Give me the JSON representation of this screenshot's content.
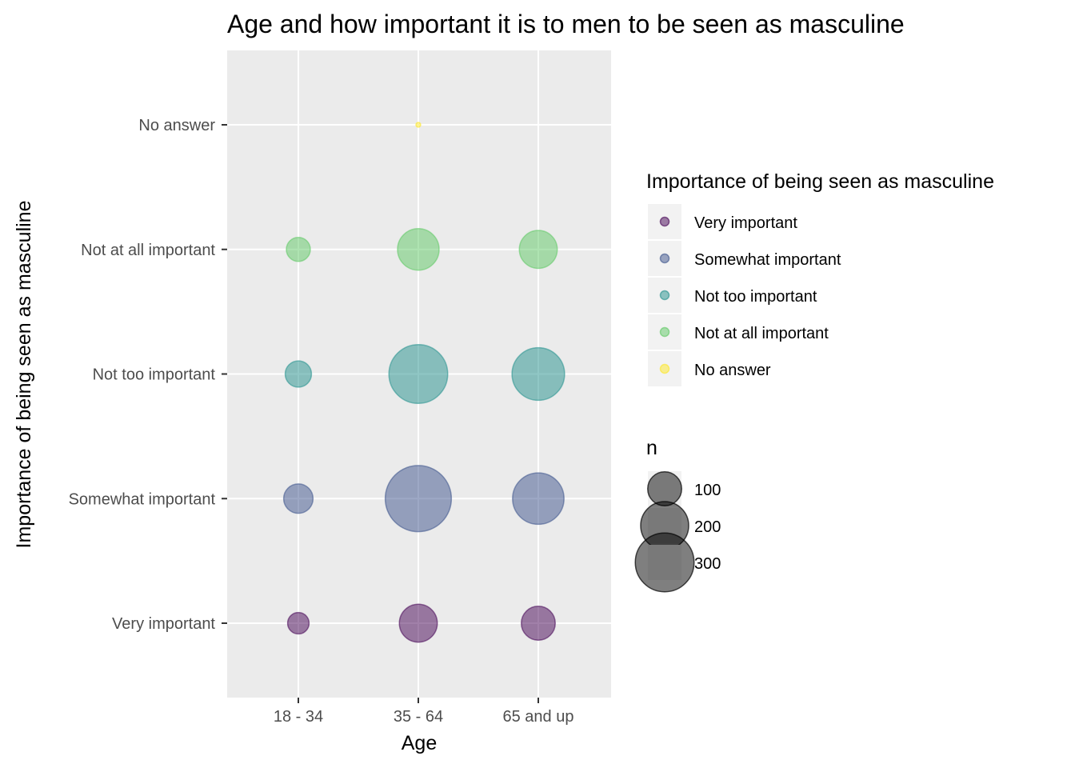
{
  "chart_data": {
    "type": "scatter",
    "title": "Age and how important it is to men to be seen as masculine",
    "xlabel": "Age",
    "ylabel": "Importance of being seen as masculine",
    "x_categories": [
      "18 - 34",
      "35 - 64",
      "65 and up"
    ],
    "y_categories": [
      "Very important",
      "Somewhat important",
      "Not too important",
      "Not at all important",
      "No answer"
    ],
    "grid": true,
    "legend_position": "right",
    "colors": {
      "Very important": "#440154",
      "Somewhat important": "#3b528b",
      "Not too important": "#21908c",
      "Not at all important": "#5dc863",
      "No answer": "#fde725"
    },
    "points": [
      {
        "age": "18 - 34",
        "importance": "Very important",
        "n": 40
      },
      {
        "age": "18 - 34",
        "importance": "Somewhat important",
        "n": 75
      },
      {
        "age": "18 - 34",
        "importance": "Not too important",
        "n": 60
      },
      {
        "age": "18 - 34",
        "importance": "Not at all important",
        "n": 50
      },
      {
        "age": "35 - 64",
        "importance": "Very important",
        "n": 125
      },
      {
        "age": "35 - 64",
        "importance": "Somewhat important",
        "n": 380
      },
      {
        "age": "35 - 64",
        "importance": "Not too important",
        "n": 300
      },
      {
        "age": "35 - 64",
        "importance": "Not at all important",
        "n": 150
      },
      {
        "age": "35 - 64",
        "importance": "No answer",
        "n": 2
      },
      {
        "age": "65 and up",
        "importance": "Very important",
        "n": 100
      },
      {
        "age": "65 and up",
        "importance": "Somewhat important",
        "n": 230
      },
      {
        "age": "65 and up",
        "importance": "Not too important",
        "n": 240
      },
      {
        "age": "65 and up",
        "importance": "Not at all important",
        "n": 125
      }
    ],
    "color_legend": {
      "title": "Importance of being seen as masculine",
      "entries": [
        "Very important",
        "Somewhat important",
        "Not too important",
        "Not at all important",
        "No answer"
      ]
    },
    "size_legend": {
      "title": "n",
      "entries": [
        100,
        200,
        300
      ]
    }
  }
}
